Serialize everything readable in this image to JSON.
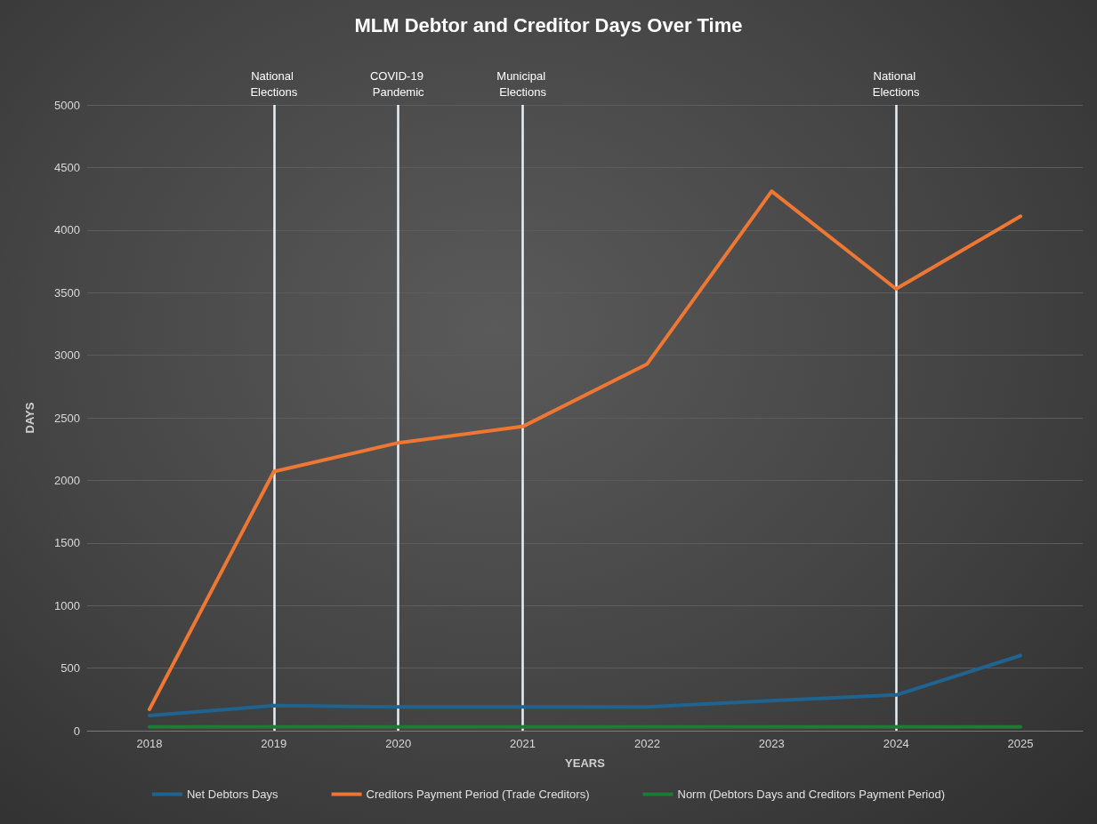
{
  "chart_data": {
    "type": "line",
    "title": "MLM Debtor and Creditor Days Over Time",
    "xlabel": "YEARS",
    "ylabel": "DAYS",
    "categories": [
      "2018",
      "2019",
      "2020",
      "2021",
      "2022",
      "2023",
      "2024",
      "2025"
    ],
    "series": [
      {
        "name": "Net Debtors Days",
        "color": "#1f6391",
        "values": [
          120,
          200,
          190,
          190,
          190,
          240,
          285,
          600
        ]
      },
      {
        "name": "Creditors Payment Period (Trade Creditors)",
        "color": "#ee7733",
        "values": [
          170,
          2070,
          2300,
          2430,
          2930,
          4310,
          3530,
          4110
        ]
      },
      {
        "name": "Norm (Debtors Days and Creditors Payment Period)",
        "color": "#1e7b34",
        "values": [
          30,
          30,
          30,
          30,
          30,
          30,
          30,
          30
        ]
      }
    ],
    "ylim": [
      0,
      5000
    ],
    "yticks": [
      0,
      500,
      1000,
      1500,
      2000,
      2500,
      3000,
      3500,
      4000,
      4500,
      5000
    ],
    "ref_lines": [
      {
        "axis": "x",
        "value": "2019",
        "label": "National Elections",
        "color": "#e8f0f8"
      },
      {
        "axis": "x",
        "value": "2020",
        "label": "COVID-19 Pandemic",
        "color": "#e8f0f8"
      },
      {
        "axis": "x",
        "value": "2021",
        "label": "Municipal Elections",
        "color": "#e8f0f8"
      },
      {
        "axis": "x",
        "value": "2024",
        "label": "National Elections",
        "color": "#e8f0f8"
      }
    ],
    "grid": "y",
    "legend": "bottom",
    "marker": "none",
    "line_style": "solid"
  }
}
